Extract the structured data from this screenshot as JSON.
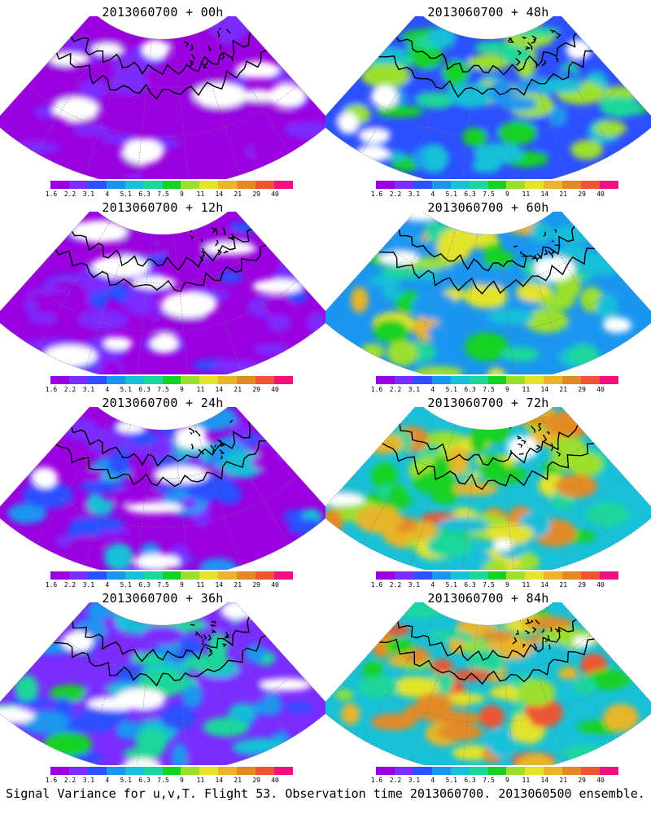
{
  "panels": [
    {
      "title": "2013060700 + 00h",
      "level": 0
    },
    {
      "title": "2013060700 + 48h",
      "level": 4
    },
    {
      "title": "2013060700 + 12h",
      "level": 1
    },
    {
      "title": "2013060700 + 60h",
      "level": 5
    },
    {
      "title": "2013060700 + 24h",
      "level": 2
    },
    {
      "title": "2013060700 + 72h",
      "level": 6
    },
    {
      "title": "2013060700 + 36h",
      "level": 3
    },
    {
      "title": "2013060700 + 84h",
      "level": 7
    }
  ],
  "colorbar": {
    "colors": [
      "#9a00e0",
      "#7b2cff",
      "#2c4fff",
      "#1a96f0",
      "#18c0d8",
      "#1ad79b",
      "#12d224",
      "#9ce02e",
      "#e3e32a",
      "#e8b52b",
      "#e38a26",
      "#ee5432",
      "#f01080"
    ],
    "ticks": [
      "1.6",
      "2.2",
      "3.1",
      "4",
      "5.1",
      "6.3",
      "7.5",
      "9",
      "11",
      "14",
      "21",
      "29",
      "40"
    ]
  },
  "footer": "Signal Variance for u,v,T. Flight 53. Observation time 2013060700. 2013060500 ensemble."
}
